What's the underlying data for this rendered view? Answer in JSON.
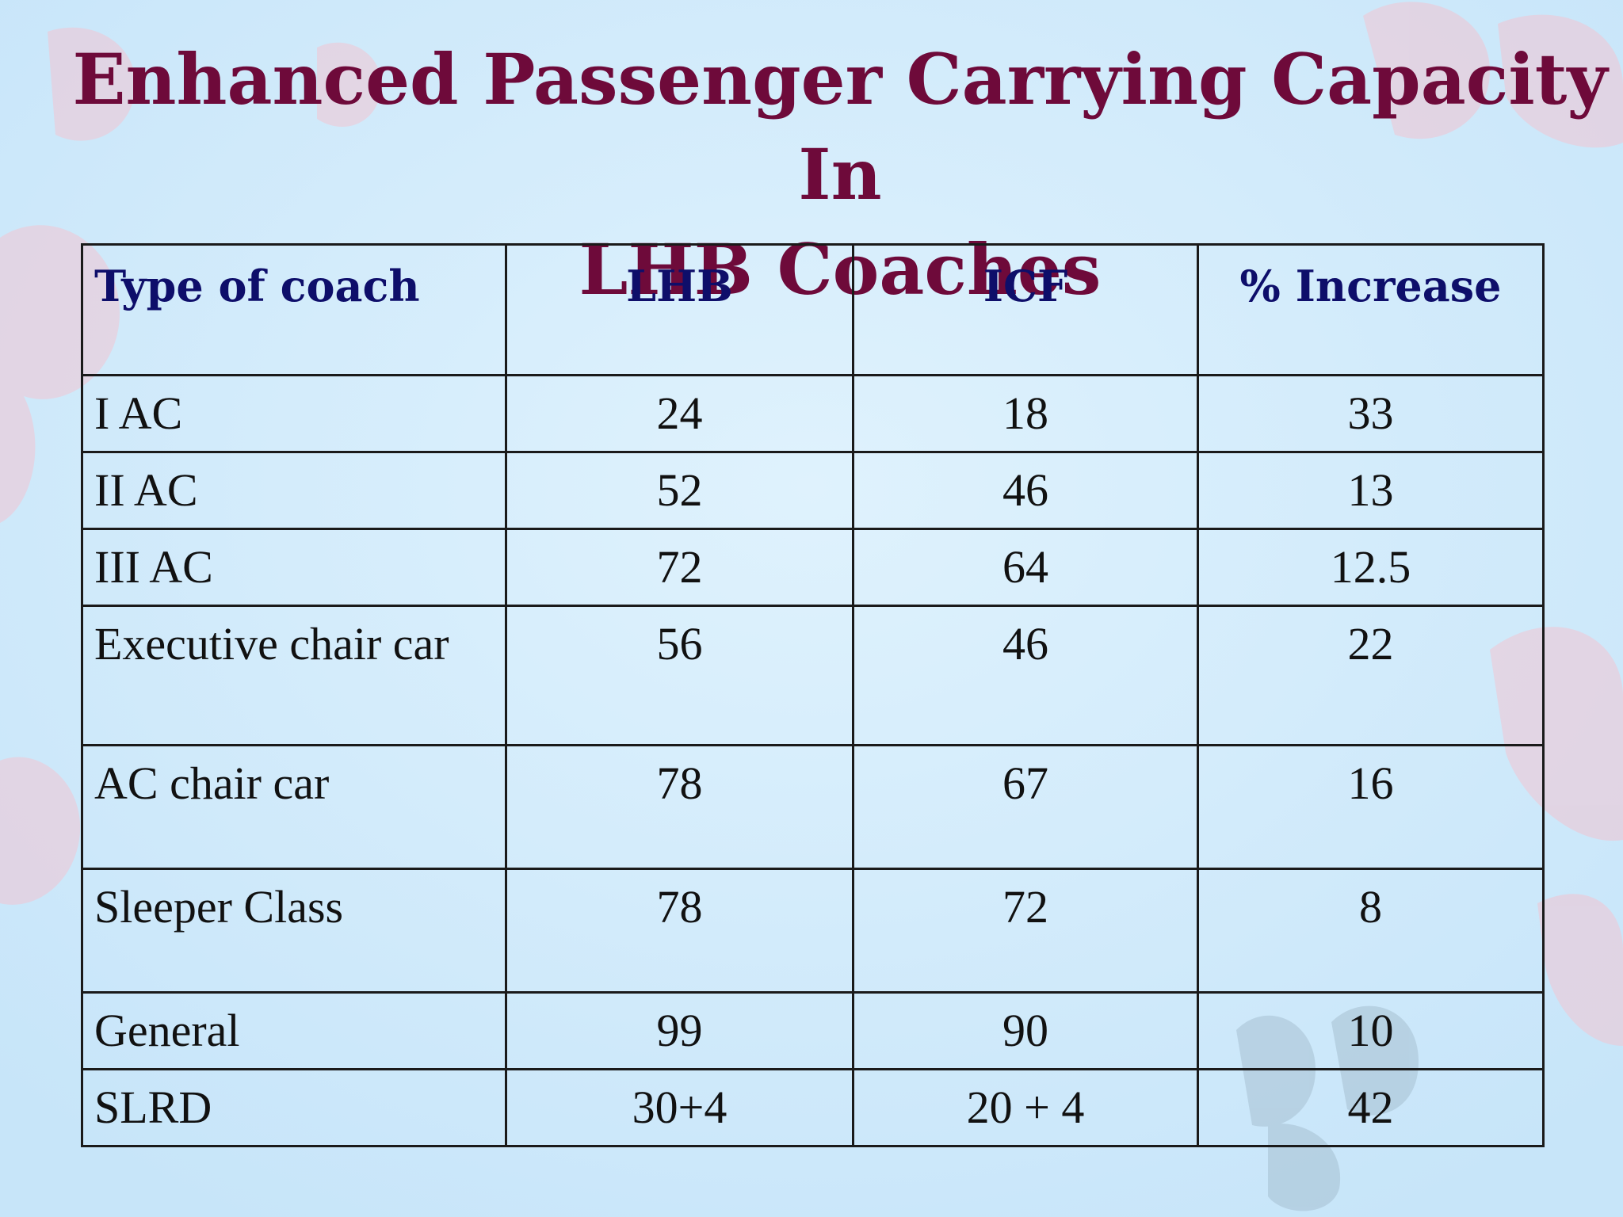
{
  "slide": {
    "title_line1": "Enhanced Passenger Carrying Capacity In",
    "title_line2": "LHB Coaches"
  },
  "table": {
    "headers": [
      "Type of coach",
      "LHB",
      "ICF",
      "% Increase"
    ],
    "rows": [
      {
        "type": "I AC",
        "lhb": "24",
        "icf": "18",
        "increase": "33"
      },
      {
        "type": "II AC",
        "lhb": "52",
        "icf": "46",
        "increase": "13"
      },
      {
        "type": "III AC",
        "lhb": "72",
        "icf": "64",
        "increase": "12.5"
      },
      {
        "type": "Executive chair car",
        "lhb": "56",
        "icf": "46",
        "increase": "22"
      },
      {
        "type": "AC chair car",
        "lhb": "78",
        "icf": "67",
        "increase": "16"
      },
      {
        "type": "Sleeper Class",
        "lhb": "78",
        "icf": "72",
        "increase": "8"
      },
      {
        "type": "General",
        "lhb": "99",
        "icf": "90",
        "increase": "10"
      },
      {
        "type": "SLRD",
        "lhb": "30+4",
        "icf": "20 + 4",
        "increase": "42"
      }
    ]
  },
  "colors": {
    "background": "#cfe9fb",
    "title": "#6e0a3a",
    "header_text": "#0e0e6a",
    "decor_pink": "#f2bfcf",
    "decor_gray": "#9fb6c6"
  }
}
